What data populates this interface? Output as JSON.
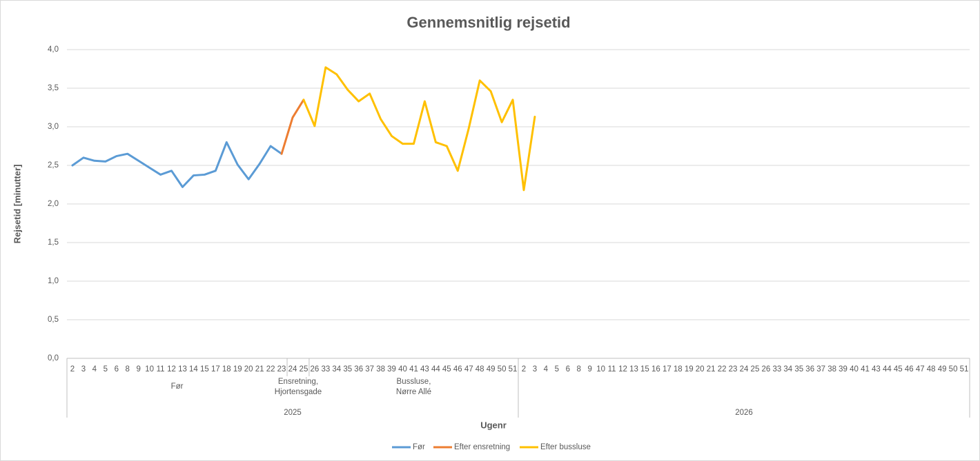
{
  "chart_data": {
    "type": "line",
    "title": "Gennemsnitlig rejsetid",
    "y_label": "Rejsetid [minutter]",
    "x_label": "Ugenr",
    "groups": [
      {
        "label": "2025",
        "subgroups": [
          {
            "label": [
              "Før"
            ],
            "categories": [
              "2",
              "3",
              "4",
              "5",
              "6",
              "8",
              "9",
              "10",
              "11",
              "12",
              "13",
              "14",
              "15",
              "17",
              "18",
              "19",
              "20",
              "21",
              "22",
              "23"
            ]
          },
          {
            "label": [
              "Ensretning,",
              "Hjortensgade"
            ],
            "categories": [
              "24",
              "25"
            ]
          },
          {
            "label": [
              "Bussluse,",
              "Nørre Allé"
            ],
            "categories": [
              "26",
              "33",
              "34",
              "35",
              "36",
              "37",
              "38",
              "39",
              "40",
              "41",
              "43",
              "44",
              "45",
              "46",
              "47",
              "48",
              "49",
              "50",
              "51"
            ]
          }
        ]
      },
      {
        "label": "2026",
        "categories": [
          "2",
          "3",
          "4",
          "5",
          "6",
          "8",
          "9",
          "10",
          "11",
          "12",
          "13",
          "15",
          "16",
          "17",
          "18",
          "19",
          "20",
          "21",
          "22",
          "23",
          "24",
          "25",
          "26",
          "33",
          "34",
          "35",
          "36",
          "37",
          "38",
          "39",
          "40",
          "41",
          "43",
          "44",
          "45",
          "46",
          "47",
          "48",
          "49",
          "50",
          "51"
        ]
      }
    ],
    "series": [
      {
        "name": "Før",
        "color": "#5b9bd5",
        "values": [
          2.5,
          2.6,
          2.56,
          2.55,
          2.62,
          2.65,
          2.56,
          2.47,
          2.38,
          2.43,
          2.22,
          2.37,
          2.38,
          2.43,
          2.8,
          2.51,
          2.32,
          2.52,
          2.75,
          2.65,
          null,
          null,
          null,
          null,
          null,
          null,
          null,
          null,
          null,
          null,
          null,
          null,
          null,
          null,
          null,
          null,
          null,
          null,
          null,
          null,
          null,
          null,
          null,
          null,
          null,
          null,
          null,
          null,
          null,
          null,
          null,
          null,
          null,
          null,
          null,
          null,
          null,
          null,
          null,
          null,
          null,
          null,
          null,
          null,
          null,
          null,
          null,
          null,
          null,
          null,
          null,
          null,
          null,
          null,
          null,
          null,
          null,
          null,
          null,
          null,
          null,
          null
        ]
      },
      {
        "name": "Efter ensretning",
        "color": "#ed7d31",
        "values": [
          null,
          null,
          null,
          null,
          null,
          null,
          null,
          null,
          null,
          null,
          null,
          null,
          null,
          null,
          null,
          null,
          null,
          null,
          null,
          2.65,
          3.12,
          3.35,
          null,
          null,
          null,
          null,
          null,
          null,
          null,
          null,
          null,
          null,
          null,
          null,
          null,
          null,
          null,
          null,
          null,
          null,
          null,
          null,
          null,
          null,
          null,
          null,
          null,
          null,
          null,
          null,
          null,
          null,
          null,
          null,
          null,
          null,
          null,
          null,
          null,
          null,
          null,
          null,
          null,
          null,
          null,
          null,
          null,
          null,
          null,
          null,
          null,
          null,
          null,
          null,
          null,
          null,
          null,
          null,
          null,
          null,
          null,
          null
        ]
      },
      {
        "name": "Efter bussluse",
        "color": "#ffc000",
        "values": [
          null,
          null,
          null,
          null,
          null,
          null,
          null,
          null,
          null,
          null,
          null,
          null,
          null,
          null,
          null,
          null,
          null,
          null,
          null,
          null,
          null,
          3.35,
          3.01,
          3.77,
          3.68,
          3.48,
          3.33,
          3.43,
          3.1,
          2.88,
          2.78,
          2.78,
          3.33,
          2.8,
          2.75,
          2.43,
          2.98,
          3.6,
          3.46,
          3.06,
          3.35,
          2.18,
          3.13,
          null,
          null,
          null,
          null,
          null,
          null,
          null,
          null,
          null,
          null,
          null,
          null,
          null,
          null,
          null,
          null,
          null,
          null,
          null,
          null,
          null,
          null,
          null,
          null,
          null,
          null,
          null,
          null,
          null,
          null,
          null,
          null,
          null,
          null,
          null,
          null,
          null,
          null,
          null
        ]
      }
    ],
    "ylim": [
      0,
      4
    ],
    "yticks": [
      {
        "value": 0,
        "label": "0,0"
      },
      {
        "value": 0.5,
        "label": "0,5"
      },
      {
        "value": 1,
        "label": "1,0"
      },
      {
        "value": 1.5,
        "label": "1,5"
      },
      {
        "value": 2,
        "label": "2,0"
      },
      {
        "value": 2.5,
        "label": "2,5"
      },
      {
        "value": 3,
        "label": "3,0"
      },
      {
        "value": 3.5,
        "label": "3,5"
      },
      {
        "value": 4,
        "label": "4,0"
      }
    ],
    "grid": true,
    "legend": "bottom"
  }
}
